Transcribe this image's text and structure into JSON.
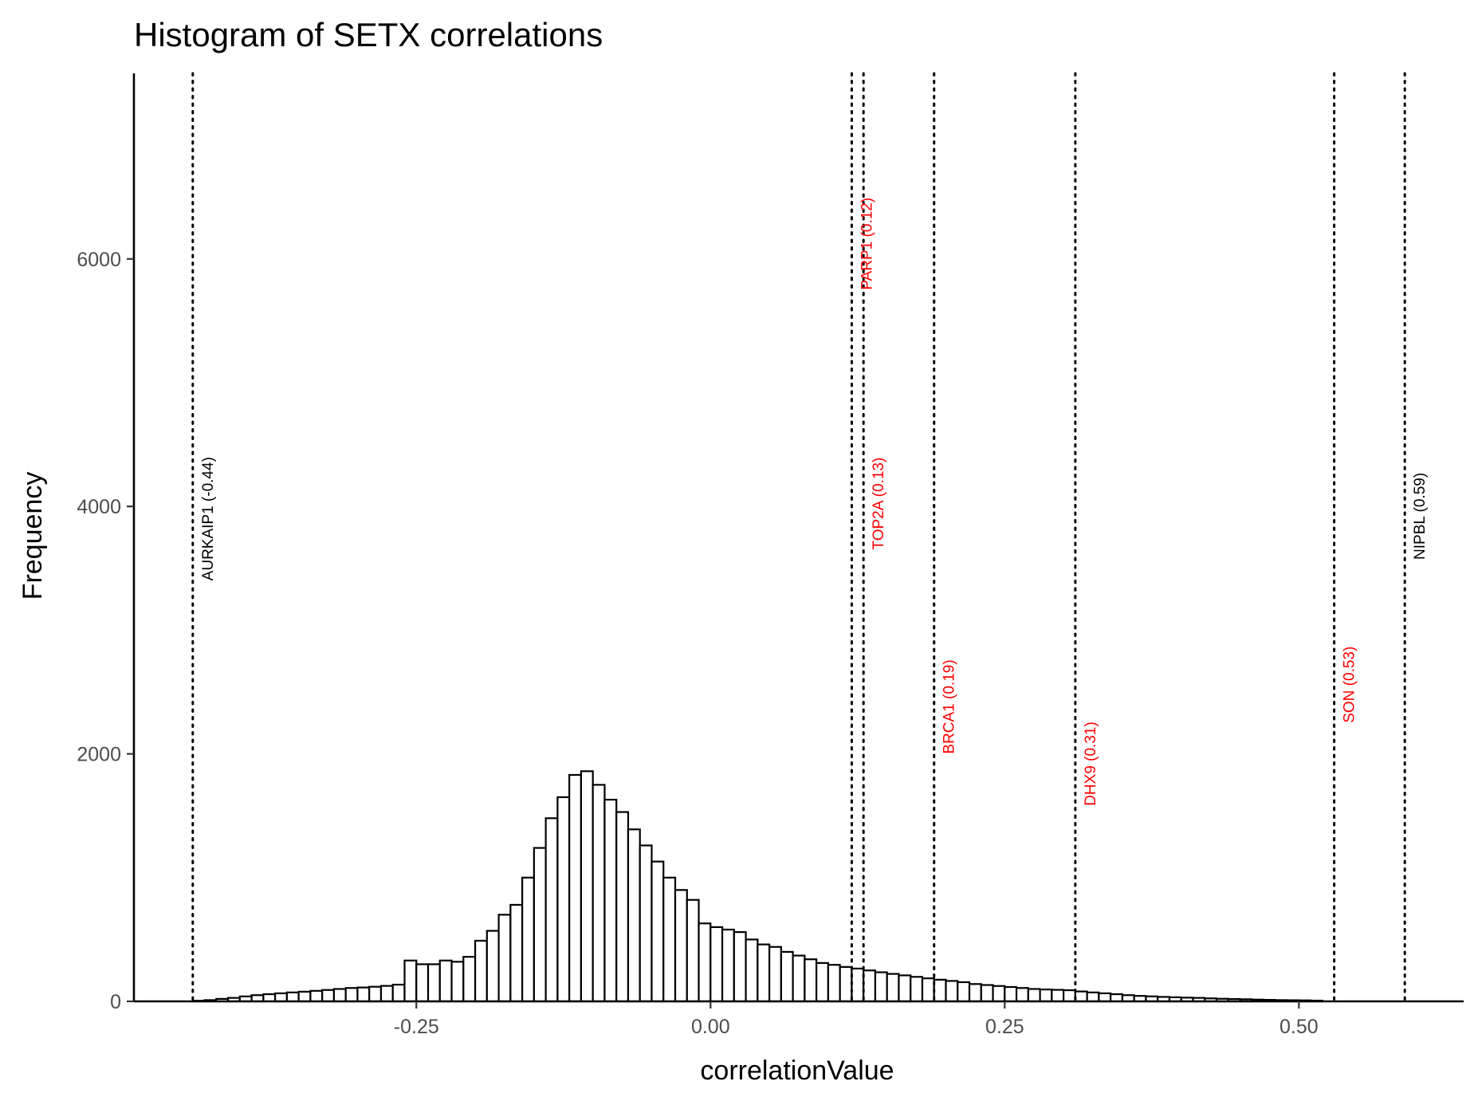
{
  "chart_data": {
    "type": "bar",
    "title": "Histogram of SETX correlations",
    "xlabel": "correlationValue",
    "ylabel": "Frequency",
    "xlim": [
      -0.49,
      0.64
    ],
    "ylim": [
      0,
      7500
    ],
    "x_ticks": [
      {
        "value": -0.25,
        "label": "-0.25"
      },
      {
        "value": 0.0,
        "label": "0.00"
      },
      {
        "value": 0.25,
        "label": "0.25"
      },
      {
        "value": 0.5,
        "label": "0.50"
      }
    ],
    "y_ticks": [
      {
        "value": 0,
        "label": "0"
      },
      {
        "value": 2000,
        "label": "2000"
      },
      {
        "value": 4000,
        "label": "4000"
      },
      {
        "value": 6000,
        "label": "6000"
      }
    ],
    "grid": false,
    "bar_fill": "#ffffff",
    "bar_stroke": "#000000",
    "bin_width": 0.01,
    "bin_start": -0.44,
    "values": [
      5,
      10,
      20,
      28,
      40,
      50,
      58,
      65,
      72,
      78,
      85,
      92,
      100,
      108,
      112,
      118,
      125,
      135,
      330,
      300,
      300,
      330,
      320,
      360,
      490,
      570,
      700,
      780,
      1000,
      1240,
      1480,
      1650,
      1830,
      1860,
      1750,
      1630,
      1530,
      1390,
      1260,
      1130,
      1000,
      900,
      820,
      630,
      600,
      580,
      560,
      500,
      460,
      440,
      400,
      370,
      340,
      310,
      295,
      278,
      265,
      250,
      235,
      222,
      210,
      198,
      186,
      175,
      165,
      155,
      140,
      132,
      124,
      116,
      108,
      100,
      96,
      93,
      90,
      80,
      72,
      65,
      58,
      50,
      44,
      40,
      36,
      33,
      30,
      28,
      24,
      21,
      19,
      17,
      14,
      12,
      10,
      9,
      8,
      6
    ],
    "annotations": [
      {
        "gene": "AURKAIP1",
        "value": -0.44,
        "label": "AURKAIP1 (-0.44)",
        "color": "#000000",
        "label_y": 3400
      },
      {
        "gene": "PARP1",
        "value": 0.12,
        "label": "PARP1 (0.12)",
        "color": "#ff0000",
        "label_y": 5750
      },
      {
        "gene": "TOP2A",
        "value": 0.13,
        "label": "TOP2A (0.13)",
        "color": "#ff0000",
        "label_y": 3650
      },
      {
        "gene": "BRCA1",
        "value": 0.19,
        "label": "BRCA1 (0.19)",
        "color": "#ff0000",
        "label_y": 2000
      },
      {
        "gene": "DHX9",
        "value": 0.31,
        "label": "DHX9 (0.31)",
        "color": "#ff0000",
        "label_y": 1580
      },
      {
        "gene": "SON",
        "value": 0.53,
        "label": "SON (0.53)",
        "color": "#ff0000",
        "label_y": 2250
      },
      {
        "gene": "NIPBL",
        "value": 0.59,
        "label": "NIPBL (0.59)",
        "color": "#000000",
        "label_y": 3570
      }
    ]
  }
}
